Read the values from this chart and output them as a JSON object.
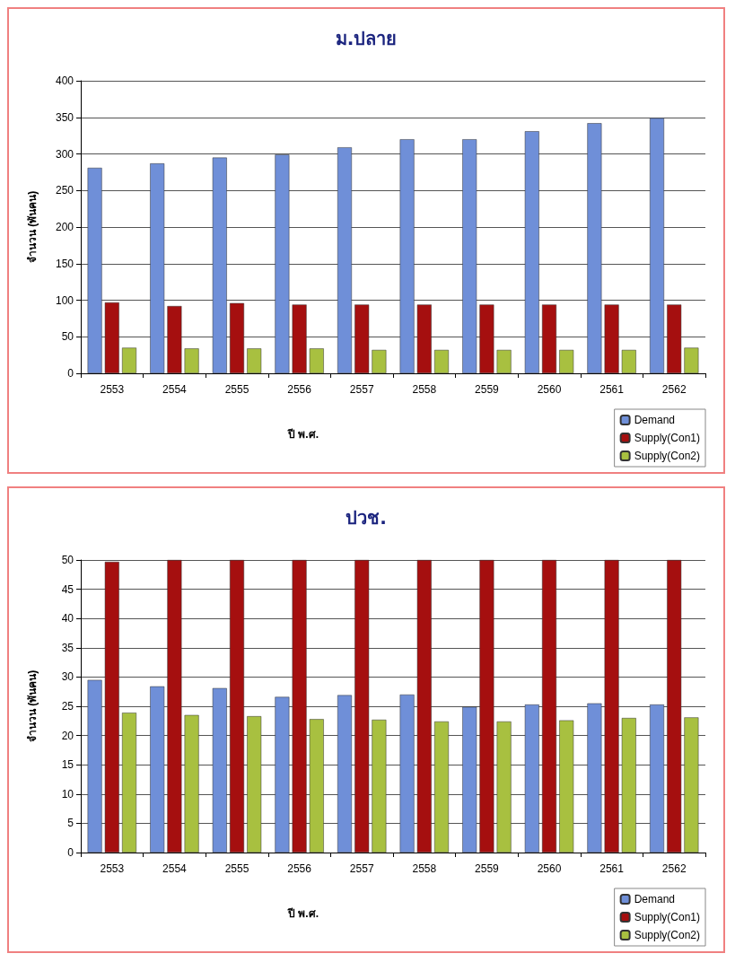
{
  "chart_data": [
    {
      "type": "bar",
      "title": "ม.ปลาย",
      "xlabel": "ปี พ.ศ.",
      "ylabel": "จำนวน (พันคน)",
      "categories": [
        "2553",
        "2554",
        "2555",
        "2556",
        "2557",
        "2558",
        "2559",
        "2560",
        "2561",
        "2562"
      ],
      "series": [
        {
          "name": "Demand",
          "color": "#6f8fd8",
          "values": [
            281,
            287,
            295,
            299,
            309,
            320,
            320,
            331,
            342,
            349
          ]
        },
        {
          "name": "Supply(Con1)",
          "color": "#a50f0f",
          "values": [
            97,
            92,
            96,
            94,
            94,
            94,
            94,
            94,
            94,
            94
          ]
        },
        {
          "name": "Supply(Con2)",
          "color": "#a8c040",
          "values": [
            35,
            34,
            34,
            34,
            32,
            32,
            32,
            32,
            32,
            35
          ]
        }
      ],
      "ylim": [
        0,
        400
      ],
      "yticks": [
        0,
        50,
        100,
        150,
        200,
        250,
        300,
        350,
        400
      ],
      "grid": "y",
      "legend": "bottom right"
    },
    {
      "type": "bar",
      "title": "ปวช.",
      "xlabel": "ปี พ.ศ.",
      "ylabel": "จำนวน (พันคน)",
      "categories": [
        "2553",
        "2554",
        "2555",
        "2556",
        "2557",
        "2558",
        "2559",
        "2560",
        "2561",
        "2562"
      ],
      "series": [
        {
          "name": "Demand",
          "color": "#6f8fd8",
          "values": [
            29.5,
            28.4,
            28.1,
            26.6,
            26.9,
            27.0,
            24.9,
            25.3,
            25.5,
            25.3
          ]
        },
        {
          "name": "Supply(Con1)",
          "color": "#a50f0f",
          "values": [
            49.7,
            50,
            50,
            50,
            50,
            50,
            50,
            50,
            50,
            50
          ]
        },
        {
          "name": "Supply(Con2)",
          "color": "#a8c040",
          "values": [
            23.9,
            23.5,
            23.3,
            22.8,
            22.7,
            22.4,
            22.4,
            22.6,
            23.0,
            23.1
          ]
        }
      ],
      "ylim": [
        0,
        50
      ],
      "yticks": [
        0,
        5,
        10,
        15,
        20,
        25,
        30,
        35,
        40,
        45,
        50
      ],
      "grid": "y",
      "legend": "bottom right"
    }
  ]
}
